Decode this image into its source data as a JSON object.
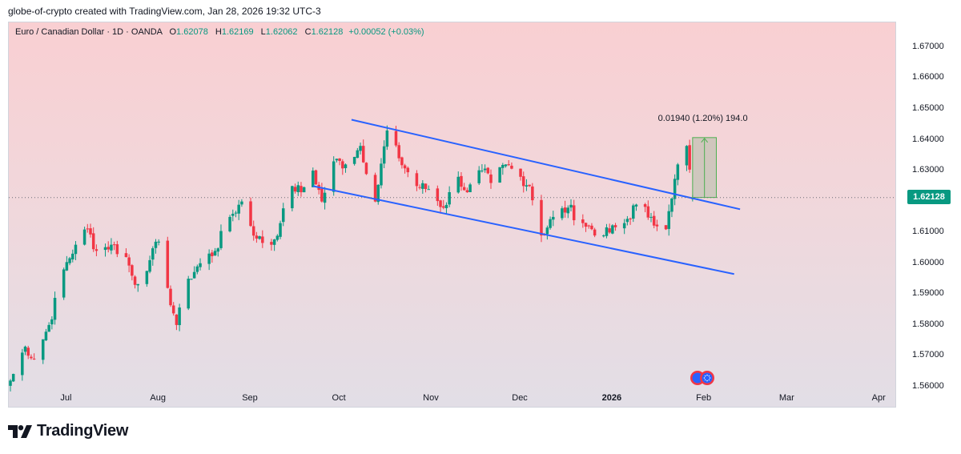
{
  "header": {
    "attribution": "globe-of-crypto created with TradingView.com, Jan 28, 2026 19:32 UTC-3"
  },
  "legend": {
    "symbol": "Euro / Canadian Dollar · 1D · OANDA",
    "open_label": "O",
    "open": "1.62078",
    "high_label": "H",
    "high": "1.62169",
    "low_label": "L",
    "low": "1.62062",
    "close_label": "C",
    "close": "1.62128",
    "change": "+0.00052 (+0.03%)"
  },
  "current_price": "1.62128",
  "measure_label": "0.01940 (1.20%) 194.0",
  "brand": {
    "name": "TradingView"
  },
  "colors": {
    "up": "#089981",
    "down": "#f23645",
    "channel": "#2962ff",
    "accent": "#089981"
  },
  "chart_data": {
    "type": "candlestick",
    "title": "Euro / Canadian Dollar · 1D · OANDA",
    "ylim": [
      1.553,
      1.678
    ],
    "yticks": [
      "1.67000",
      "1.66000",
      "1.65000",
      "1.64000",
      "1.63000",
      "1.62000",
      "1.61000",
      "1.60000",
      "1.59000",
      "1.58000",
      "1.57000",
      "1.56000"
    ],
    "ytick_values": [
      1.67,
      1.66,
      1.65,
      1.64,
      1.63,
      1.62,
      1.61,
      1.6,
      1.59,
      1.58,
      1.57,
      1.56
    ],
    "x_domain": [
      "2025-06-12",
      "2026-04-05"
    ],
    "xticks": [
      {
        "label": "Jul",
        "date": "2025-07-01",
        "bold": false
      },
      {
        "label": "Aug",
        "date": "2025-08-01",
        "bold": false
      },
      {
        "label": "Sep",
        "date": "2025-09-01",
        "bold": false
      },
      {
        "label": "Oct",
        "date": "2025-10-01",
        "bold": false
      },
      {
        "label": "Nov",
        "date": "2025-11-01",
        "bold": false
      },
      {
        "label": "Dec",
        "date": "2025-12-01",
        "bold": false
      },
      {
        "label": "2026",
        "date": "2026-01-01",
        "bold": true
      },
      {
        "label": "Feb",
        "date": "2026-02-01",
        "bold": false
      },
      {
        "label": "Mar",
        "date": "2026-03-01",
        "bold": false
      },
      {
        "label": "Apr",
        "date": "2026-04-01",
        "bold": false
      }
    ],
    "anchors": [
      [
        "2025-06-12",
        1.562
      ],
      [
        "2025-06-17",
        1.573
      ],
      [
        "2025-06-20",
        1.569
      ],
      [
        "2025-06-25",
        1.58
      ],
      [
        "2025-06-30",
        1.598
      ],
      [
        "2025-07-04",
        1.606
      ],
      [
        "2025-07-08",
        1.611
      ],
      [
        "2025-07-11",
        1.604
      ],
      [
        "2025-07-16",
        1.606
      ],
      [
        "2025-07-21",
        1.602
      ],
      [
        "2025-07-24",
        1.593
      ],
      [
        "2025-07-29",
        1.601
      ],
      [
        "2025-08-01",
        1.607
      ],
      [
        "2025-08-04",
        1.592
      ],
      [
        "2025-08-07",
        1.58
      ],
      [
        "2025-08-11",
        1.595
      ],
      [
        "2025-08-15",
        1.6
      ],
      [
        "2025-08-20",
        1.604
      ],
      [
        "2025-08-25",
        1.615
      ],
      [
        "2025-08-29",
        1.62
      ],
      [
        "2025-09-03",
        1.608
      ],
      [
        "2025-09-08",
        1.606
      ],
      [
        "2025-09-11",
        1.613
      ],
      [
        "2025-09-15",
        1.625
      ],
      [
        "2025-09-18",
        1.623
      ],
      [
        "2025-09-22",
        1.63
      ],
      [
        "2025-09-25",
        1.62
      ],
      [
        "2025-09-29",
        1.633
      ],
      [
        "2025-10-03",
        1.632
      ],
      [
        "2025-10-08",
        1.638
      ],
      [
        "2025-10-13",
        1.62
      ],
      [
        "2025-10-17",
        1.643
      ],
      [
        "2025-10-21",
        1.634
      ],
      [
        "2025-10-27",
        1.625
      ],
      [
        "2025-10-31",
        1.624
      ],
      [
        "2025-11-05",
        1.618
      ],
      [
        "2025-11-10",
        1.628
      ],
      [
        "2025-11-13",
        1.623
      ],
      [
        "2025-11-18",
        1.63
      ],
      [
        "2025-11-21",
        1.626
      ],
      [
        "2025-11-26",
        1.632
      ],
      [
        "2025-12-01",
        1.628
      ],
      [
        "2025-12-04",
        1.625
      ],
      [
        "2025-12-08",
        1.609
      ],
      [
        "2025-12-12",
        1.615
      ],
      [
        "2025-12-17",
        1.618
      ],
      [
        "2025-12-22",
        1.613
      ],
      [
        "2025-12-29",
        1.609
      ],
      [
        "2026-01-05",
        1.613
      ],
      [
        "2026-01-09",
        1.619
      ],
      [
        "2026-01-14",
        1.615
      ],
      [
        "2026-01-19",
        1.611
      ],
      [
        "2026-01-21",
        1.621
      ],
      [
        "2026-01-23",
        1.632
      ],
      [
        "2026-01-26",
        1.638
      ],
      [
        "2026-01-28",
        1.6213
      ]
    ],
    "channel_lines": [
      {
        "name": "upper",
        "from": [
          "2025-10-05",
          1.6465
        ],
        "to": [
          "2026-02-13",
          1.6175
        ]
      },
      {
        "name": "lower",
        "from": [
          "2025-09-22",
          1.625
        ],
        "to": [
          "2026-02-11",
          1.5965
        ]
      }
    ],
    "price_range": {
      "from_date": "2026-01-28",
      "to_date": "2026-02-05",
      "low": 1.6213,
      "high": 1.6407,
      "change": "0.01940",
      "percent": "1.20%",
      "ticks": "194.0"
    },
    "last_close": 1.62128
  }
}
